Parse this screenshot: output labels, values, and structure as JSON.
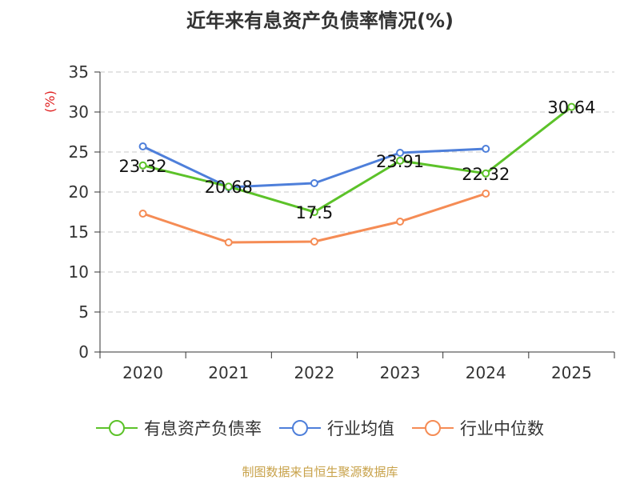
{
  "title": "近年来有息资产负债率情况(%)",
  "source": "制图数据来自恒生聚源数据库",
  "chart_data": {
    "type": "line",
    "title": "近年来有息资产负债率情况(%)",
    "ylabel": "(%)",
    "xlabel": "",
    "categories": [
      "2020",
      "2021",
      "2022",
      "2023",
      "2024",
      "2025"
    ],
    "ylim": [
      0,
      35
    ],
    "yticks": [
      0,
      5,
      10,
      15,
      20,
      25,
      30,
      35
    ],
    "grid": true,
    "legend_position": "bottom",
    "series": [
      {
        "name": "有息资产负债率",
        "color": "#5cc229",
        "values": [
          23.32,
          20.68,
          17.5,
          23.91,
          22.32,
          30.64
        ],
        "labels": [
          "23.32",
          "20.68",
          "17.5",
          "23.91",
          "22.32",
          "30.64"
        ]
      },
      {
        "name": "行业均值",
        "color": "#4e7fda",
        "values": [
          25.7,
          20.6,
          21.1,
          24.9,
          25.4,
          null
        ]
      },
      {
        "name": "行业中位数",
        "color": "#f58c55",
        "values": [
          17.3,
          13.7,
          13.8,
          16.3,
          19.8,
          null
        ]
      }
    ]
  }
}
